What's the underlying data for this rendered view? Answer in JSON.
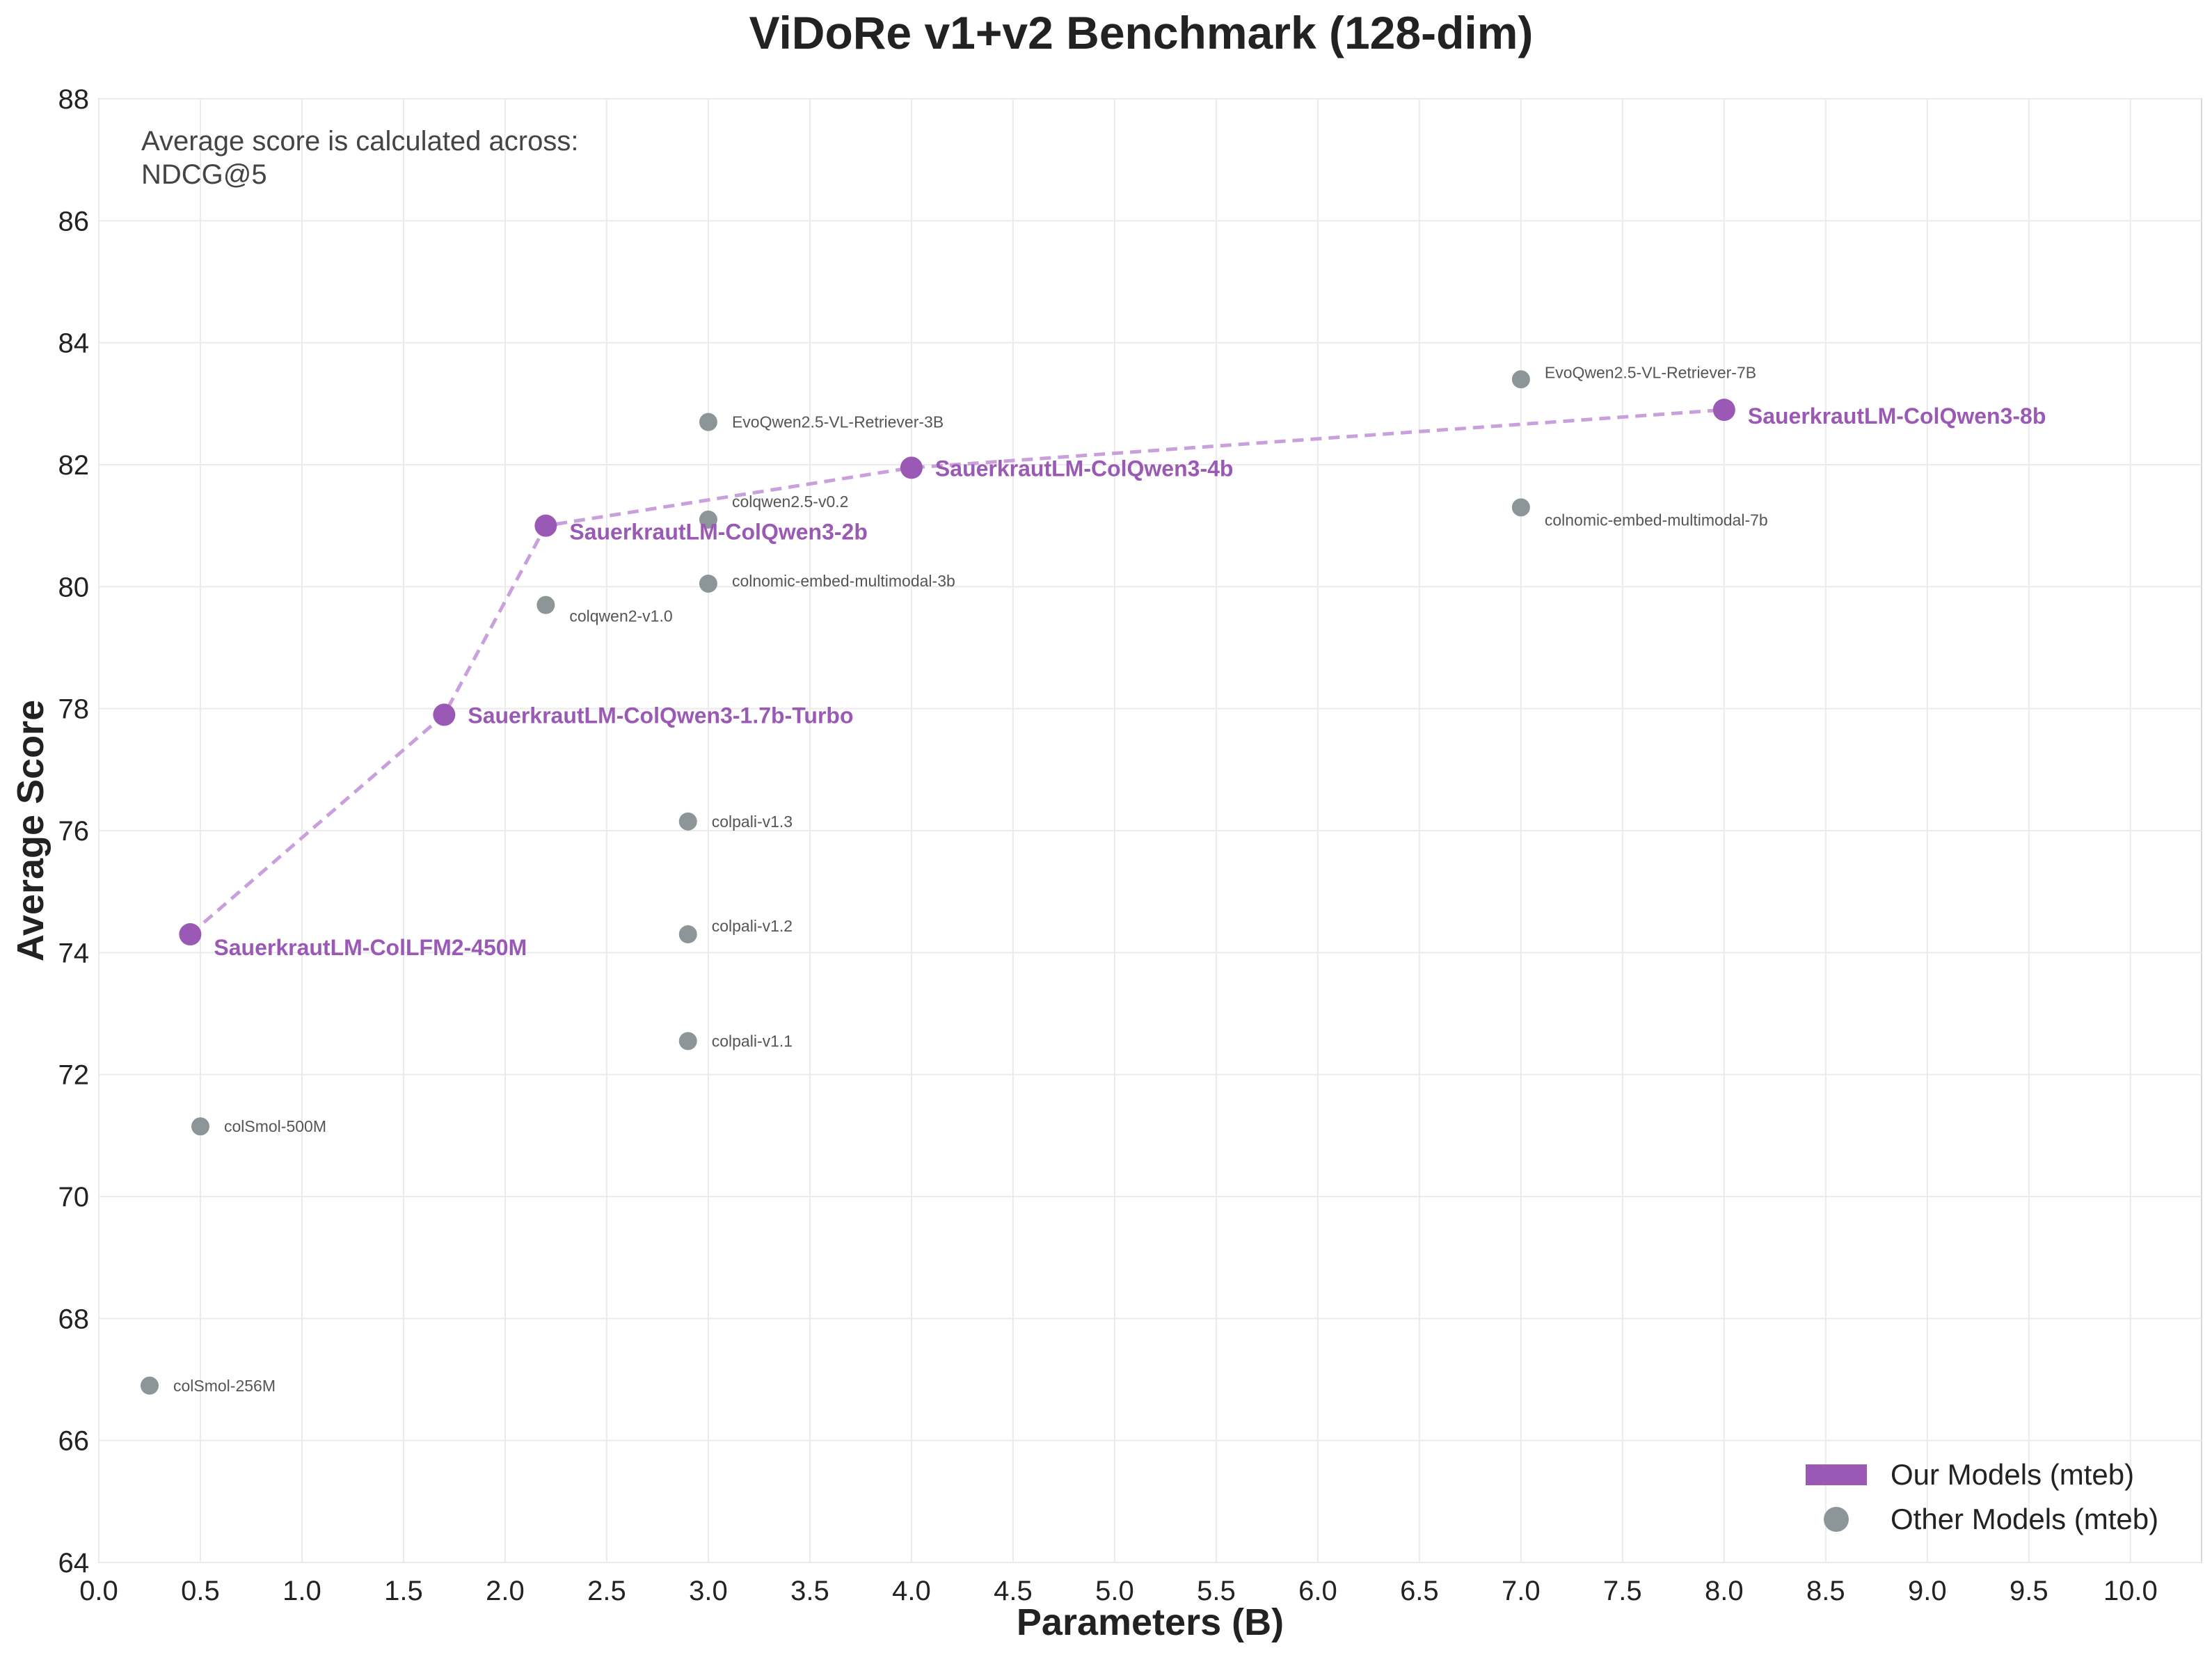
{
  "chart_data": {
    "type": "scatter",
    "title": "ViDoRe v1+v2 Benchmark (128-dim)",
    "xlabel": "Parameters (B)",
    "ylabel": "Average Score",
    "xlim": [
      0,
      10.35
    ],
    "ylim": [
      64,
      88
    ],
    "xticks": [
      "0.0",
      "0.5",
      "1.0",
      "1.5",
      "2.0",
      "2.5",
      "3.0",
      "3.5",
      "4.0",
      "4.5",
      "5.0",
      "5.5",
      "6.0",
      "6.5",
      "7.0",
      "7.5",
      "8.0",
      "8.5",
      "9.0",
      "9.5",
      "10.0"
    ],
    "yticks": [
      "64",
      "66",
      "68",
      "70",
      "72",
      "74",
      "76",
      "78",
      "80",
      "82",
      "84",
      "86",
      "88"
    ],
    "grid": true,
    "annotation": [
      "Average score is calculated across:",
      "NDCG@5"
    ],
    "legend": {
      "position": "bottom-right",
      "entries": [
        {
          "label": "Our Models (mteb)",
          "marker": "bar"
        },
        {
          "label": "Other Models (mteb)",
          "marker": "circle"
        }
      ]
    },
    "colors": {
      "ours": "#9b59b6",
      "ours_line": "#c9a0dc",
      "other": "#8c9699"
    },
    "series": [
      {
        "name": "Our Models (mteb)",
        "connected": true,
        "points": [
          {
            "label": "SauerkrautLM-ColLFM2-450M",
            "x": 0.45,
            "y": 74.3
          },
          {
            "label": "SauerkrautLM-ColQwen3-1.7b-Turbo",
            "x": 1.7,
            "y": 77.9
          },
          {
            "label": "SauerkrautLM-ColQwen3-2b",
            "x": 2.2,
            "y": 81.0
          },
          {
            "label": "SauerkrautLM-ColQwen3-4b",
            "x": 4.0,
            "y": 81.95
          },
          {
            "label": "SauerkrautLM-ColQwen3-8b",
            "x": 8.0,
            "y": 82.9
          }
        ]
      },
      {
        "name": "Other Models (mteb)",
        "connected": false,
        "points": [
          {
            "label": "colSmol-256M",
            "x": 0.25,
            "y": 66.9
          },
          {
            "label": "colSmol-500M",
            "x": 0.5,
            "y": 71.15
          },
          {
            "label": "colqwen2-v1.0",
            "x": 2.2,
            "y": 79.7
          },
          {
            "label": "colpali-v1.1",
            "x": 2.9,
            "y": 72.55
          },
          {
            "label": "colpali-v1.2",
            "x": 2.9,
            "y": 74.3
          },
          {
            "label": "colpali-v1.3",
            "x": 2.9,
            "y": 76.15
          },
          {
            "label": "colnomic-embed-multimodal-3b",
            "x": 3.0,
            "y": 80.05
          },
          {
            "label": "colqwen2.5-v0.2",
            "x": 3.0,
            "y": 81.1
          },
          {
            "label": "EvoQwen2.5-VL-Retriever-3B",
            "x": 3.0,
            "y": 82.7
          },
          {
            "label": "EvoQwen2.5-VL-Retriever-7B",
            "x": 7.0,
            "y": 83.4
          },
          {
            "label": "colnomic-embed-multimodal-7b",
            "x": 7.0,
            "y": 81.3
          }
        ]
      }
    ]
  }
}
